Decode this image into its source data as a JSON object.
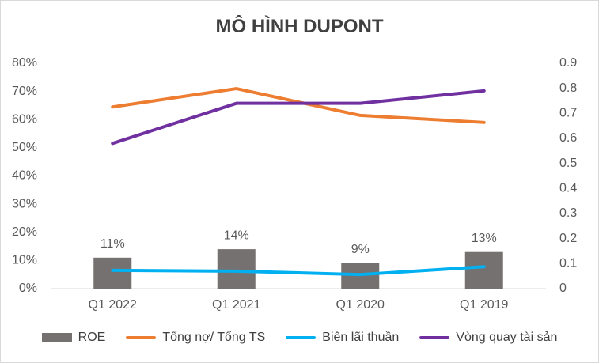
{
  "chart_data": {
    "type": "bar",
    "title": "MÔ HÌNH DUPONT",
    "categories": [
      "Q1 2022",
      "Q1 2021",
      "Q1 2020",
      "Q1 2019"
    ],
    "y_left": {
      "ticks": [
        "0%",
        "10%",
        "20%",
        "30%",
        "40%",
        "50%",
        "60%",
        "70%",
        "80%"
      ],
      "ylim": [
        0,
        0.8
      ]
    },
    "y_right": {
      "ticks": [
        "0",
        "0.1",
        "0.2",
        "0.3",
        "0.4",
        "0.5",
        "0.6",
        "0.7",
        "0.8",
        "0.9"
      ],
      "ylim": [
        0,
        0.9
      ]
    },
    "grid": false,
    "legend_position": "bottom",
    "series": [
      {
        "name": "ROE",
        "type": "bar",
        "axis": "left",
        "values": [
          0.11,
          0.14,
          0.09,
          0.13
        ],
        "labels": [
          "11%",
          "14%",
          "9%",
          "13%"
        ],
        "color": "#767171"
      },
      {
        "name": "Tổng nợ/ Tổng TS",
        "type": "line",
        "axis": "left",
        "values": [
          0.645,
          0.71,
          0.615,
          0.59
        ],
        "color": "#ED7D31"
      },
      {
        "name": "Biên lãi thuần",
        "type": "line",
        "axis": "left",
        "values": [
          0.065,
          0.062,
          0.05,
          0.078
        ],
        "color": "#00B0F0"
      },
      {
        "name": "Vòng quay tài sản",
        "type": "line",
        "axis": "right",
        "values": [
          0.58,
          0.74,
          0.74,
          0.79
        ],
        "color": "#7030A0"
      }
    ]
  }
}
